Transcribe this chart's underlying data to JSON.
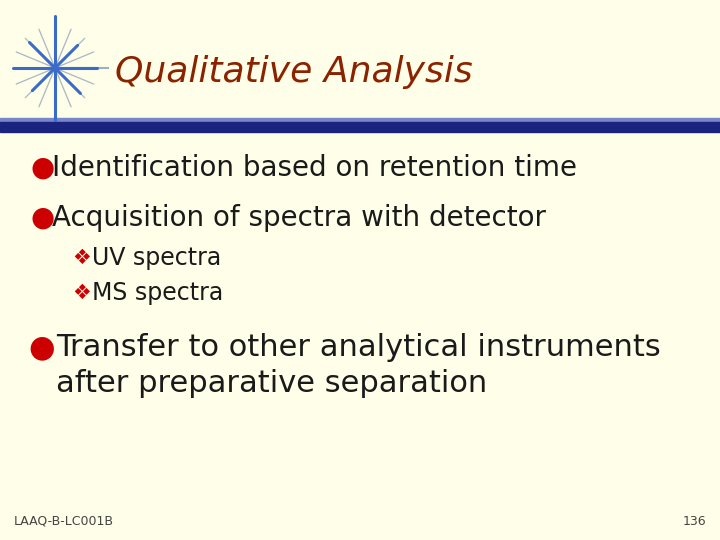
{
  "background_color": "#FFFEE8",
  "title": "Qualitative Analysis",
  "title_color": "#8B2200",
  "title_fontsize": 26,
  "header_line_color_dark": "#1A237E",
  "header_line_color_light": "#7986CB",
  "star_color_thin": "#9EAFC2",
  "star_color_bold": "#3A6BC8",
  "bullet_color": "#CC0000",
  "bullet_char": "●",
  "sub_bullet_color": "#CC0000",
  "sub_bullet_char": "❖",
  "text_color": "#1a1a1a",
  "footer_text": "LAAQ-B-LC001B",
  "footer_page": "136",
  "footer_color": "#444444",
  "bullet1": "Identification based on retention time",
  "bullet2": "Acquisition of spectra with detector",
  "sub1": "UV spectra",
  "sub2": "MS spectra",
  "bullet3_line1": "Transfer to other analytical instruments",
  "bullet3_line2": "after preparative separation",
  "main_fontsize": 20,
  "sub_fontsize": 17,
  "b3_fontsize": 22,
  "footer_fontsize": 9
}
